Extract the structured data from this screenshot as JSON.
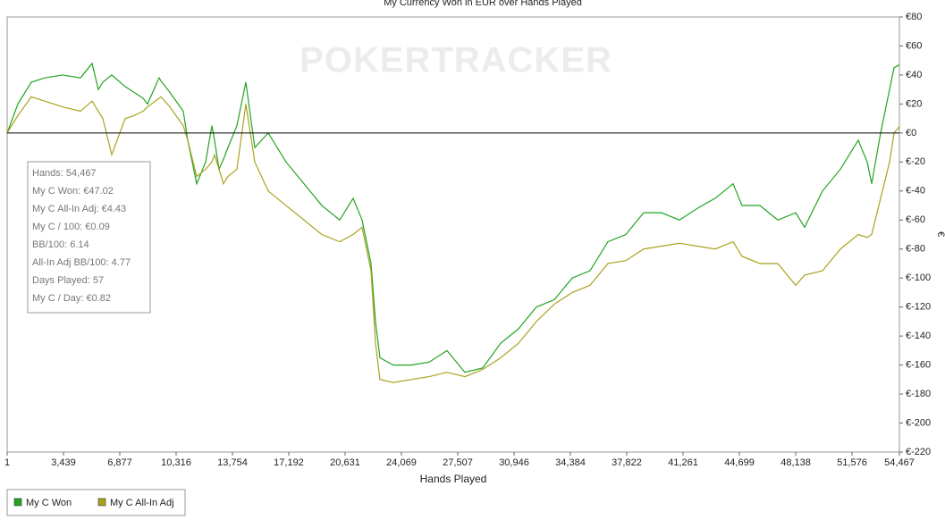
{
  "chart_data": {
    "type": "line",
    "title": "My Currency Won in EUR over Hands Played",
    "watermark": "POKERTRACKER",
    "xlabel": "Hands Played",
    "ylabel": "€",
    "xlim": [
      1,
      54467
    ],
    "xticks": [
      1,
      {
        "value": 3439,
        "label": "3,439"
      },
      {
        "value": 6877,
        "label": "6,877"
      },
      {
        "value": 10316,
        "label": "10,316"
      },
      {
        "value": 13754,
        "label": "13,754"
      },
      {
        "value": 17192,
        "label": "17,192"
      },
      {
        "value": 20631,
        "label": "20,631"
      },
      {
        "value": 24069,
        "label": "24,069"
      },
      {
        "value": 27507,
        "label": "27,507"
      },
      {
        "value": 30946,
        "label": "30,946"
      },
      {
        "value": 34384,
        "label": "34,384"
      },
      {
        "value": 37822,
        "label": "37,822"
      },
      {
        "value": 41261,
        "label": "41,261"
      },
      {
        "value": 44699,
        "label": "44,699"
      },
      {
        "value": 48138,
        "label": "48,138"
      },
      {
        "value": 51576,
        "label": "51,576"
      },
      {
        "value": 54467,
        "label": "54,467"
      }
    ],
    "ylim": [
      -220,
      80
    ],
    "yticks": [
      {
        "value": 80,
        "label": "€80"
      },
      {
        "value": 60,
        "label": "€60"
      },
      {
        "value": 40,
        "label": "€40"
      },
      {
        "value": 20,
        "label": "€20"
      },
      {
        "value": 0,
        "label": "€0"
      },
      {
        "value": -20,
        "label": "€-20"
      },
      {
        "value": -40,
        "label": "€-40"
      },
      {
        "value": -60,
        "label": "€-60"
      },
      {
        "value": -80,
        "label": "€-80"
      },
      {
        "value": -100,
        "label": "€-100"
      },
      {
        "value": -120,
        "label": "€-120"
      },
      {
        "value": -140,
        "label": "€-140"
      },
      {
        "value": -160,
        "label": "€-160"
      },
      {
        "value": -180,
        "label": "€-180"
      },
      {
        "value": -200,
        "label": "€-200"
      },
      {
        "value": -220,
        "label": "€-220"
      }
    ],
    "grid": false,
    "zero_line": true,
    "x": [
      1,
      656,
      1474,
      2293,
      3384,
      4476,
      5185,
      5567,
      5840,
      6386,
      7204,
      7750,
      8296,
      8569,
      9278,
      9388,
      9933,
      10752,
      11025,
      11571,
      12117,
      12498,
      12662,
      12935,
      13207,
      13480,
      14026,
      14572,
      15117,
      15936,
      17027,
      18119,
      19210,
      20302,
      21120,
      21666,
      22212,
      22485,
      22758,
      23576,
      24668,
      25759,
      26851,
      27942,
      29034,
      30125,
      31217,
      32308,
      33400,
      34491,
      35583,
      36674,
      37766,
      38857,
      39949,
      41040,
      42132,
      43223,
      44315,
      44860,
      45952,
      47044,
      48135,
      48681,
      49772,
      50864,
      51955,
      52501,
      52774,
      53320,
      53866,
      54139,
      54467
    ],
    "series": [
      {
        "name": "My C Won",
        "color": "#22a322",
        "values": [
          0,
          20,
          35,
          38,
          40,
          38,
          48,
          30,
          35,
          40,
          32,
          28,
          24,
          20,
          38,
          36,
          28,
          15,
          -5,
          -35,
          -20,
          5,
          -5,
          -25,
          -18,
          -10,
          5,
          35,
          -10,
          0,
          -20,
          -35,
          -50,
          -60,
          -45,
          -60,
          -90,
          -130,
          -155,
          -160,
          -160,
          -158,
          -150,
          -165,
          -162,
          -145,
          -135,
          -120,
          -115,
          -100,
          -95,
          -75,
          -70,
          -55,
          -55,
          -60,
          -52,
          -45,
          -35,
          -50,
          -50,
          -60,
          -55,
          -65,
          -40,
          -25,
          -5,
          -20,
          -35,
          0,
          30,
          45,
          47.02
        ]
      },
      {
        "name": "My C All-In Adj",
        "color": "#aaa21e",
        "values": [
          0,
          12,
          25,
          22,
          18,
          15,
          22,
          15,
          10,
          -15,
          10,
          12,
          15,
          18,
          24,
          25,
          18,
          5,
          -5,
          -30,
          -25,
          -20,
          -15,
          -25,
          -35,
          -30,
          -25,
          20,
          -20,
          -40,
          -50,
          -60,
          -70,
          -75,
          -70,
          -65,
          -95,
          -145,
          -170,
          -172,
          -170,
          -168,
          -165,
          -168,
          -163,
          -155,
          -145,
          -130,
          -118,
          -110,
          -105,
          -90,
          -88,
          -80,
          -78,
          -76,
          -78,
          -80,
          -75,
          -85,
          -90,
          -90,
          -105,
          -98,
          -95,
          -80,
          -70,
          -72,
          -70,
          -45,
          -20,
          0,
          4.43
        ]
      }
    ],
    "info_box": [
      "Hands: 54,467",
      "My C Won: €47.02",
      "My C All-In Adj: €4.43",
      "My C / 100: €0.09",
      "BB/100: 6.14",
      "All-In Adj BB/100: 4.77",
      "Days Played: 57",
      "My C / Day: €0.82"
    ]
  }
}
